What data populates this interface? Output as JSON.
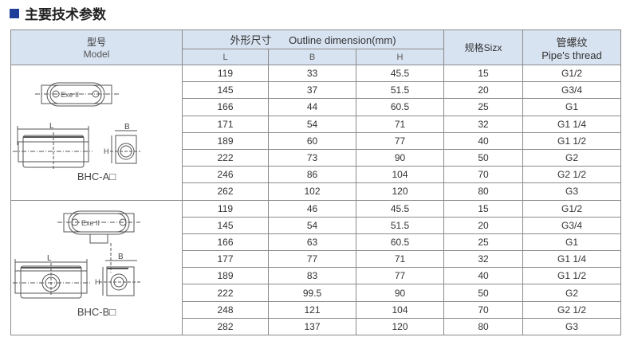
{
  "title": "主要技术参数",
  "header": {
    "model_cn": "型号",
    "model_en": "Model",
    "outline_cn": "外形尺寸",
    "outline_en": "Outline dimension(mm)",
    "L": "L",
    "B": "B",
    "H": "H",
    "size": "规格Sizx",
    "thread_cn": "管螺纹",
    "thread_en": "Pipe's thread"
  },
  "groups": [
    {
      "model": "BHC-A□",
      "drawing_label": "Exe II",
      "rows": [
        [
          "119",
          "33",
          "45.5",
          "15",
          "G1/2"
        ],
        [
          "145",
          "37",
          "51.5",
          "20",
          "G3/4"
        ],
        [
          "166",
          "44",
          "60.5",
          "25",
          "G1"
        ],
        [
          "171",
          "54",
          "71",
          "32",
          "G1 1/4"
        ],
        [
          "189",
          "60",
          "77",
          "40",
          "G1 1/2"
        ],
        [
          "222",
          "73",
          "90",
          "50",
          "G2"
        ],
        [
          "246",
          "86",
          "104",
          "70",
          "G2 1/2"
        ],
        [
          "262",
          "102",
          "120",
          "80",
          "G3"
        ]
      ]
    },
    {
      "model": "BHC-B□",
      "drawing_label": "Exe II",
      "rows": [
        [
          "119",
          "46",
          "45.5",
          "15",
          "G1/2"
        ],
        [
          "145",
          "54",
          "51.5",
          "20",
          "G3/4"
        ],
        [
          "166",
          "63",
          "60.5",
          "25",
          "G1"
        ],
        [
          "177",
          "77",
          "71",
          "32",
          "G1 1/4"
        ],
        [
          "189",
          "83",
          "77",
          "40",
          "G1 1/2"
        ],
        [
          "222",
          "99.5",
          "90",
          "50",
          "G2"
        ],
        [
          "248",
          "121",
          "104",
          "70",
          "G2 1/2"
        ],
        [
          "282",
          "137",
          "120",
          "80",
          "G3"
        ]
      ]
    }
  ],
  "dim_labels": {
    "L": "L",
    "B": "B",
    "H": "H"
  }
}
